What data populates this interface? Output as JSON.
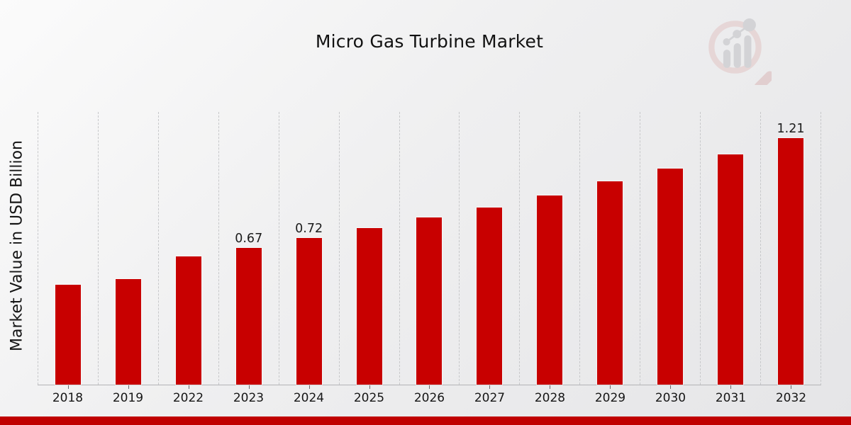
{
  "title": "Micro Gas Turbine Market",
  "ylabel": "Market Value in USD Billion",
  "chart_data": {
    "type": "bar",
    "title": "Micro Gas Turbine Market",
    "xlabel": "",
    "ylabel": "Market Value in USD Billion",
    "categories": [
      "2018",
      "2019",
      "2022",
      "2023",
      "2024",
      "2025",
      "2026",
      "2027",
      "2028",
      "2029",
      "2030",
      "2031",
      "2032"
    ],
    "values": [
      0.49,
      0.52,
      0.63,
      0.67,
      0.72,
      0.77,
      0.82,
      0.87,
      0.93,
      1.0,
      1.06,
      1.13,
      1.21
    ],
    "data_labels": [
      null,
      null,
      null,
      "0.67",
      "0.72",
      null,
      null,
      null,
      null,
      null,
      null,
      null,
      "1.21"
    ],
    "ylim": [
      0,
      1.34
    ],
    "grid": "vertical-dashed",
    "legend": "none",
    "y_axis_ticks_visible": false
  },
  "colors": {
    "bar": "#c80000",
    "bottom_band": "#c00000",
    "gridline": "#c7c8ca",
    "axis_line": "#b3b3b6",
    "text": "#1a1a1a",
    "logo_ring": "#e3c8c8",
    "logo_handle": "#dbbcbc",
    "logo_bars": "#c3c4c8"
  },
  "logo": {
    "name": "market-research-watermark"
  }
}
